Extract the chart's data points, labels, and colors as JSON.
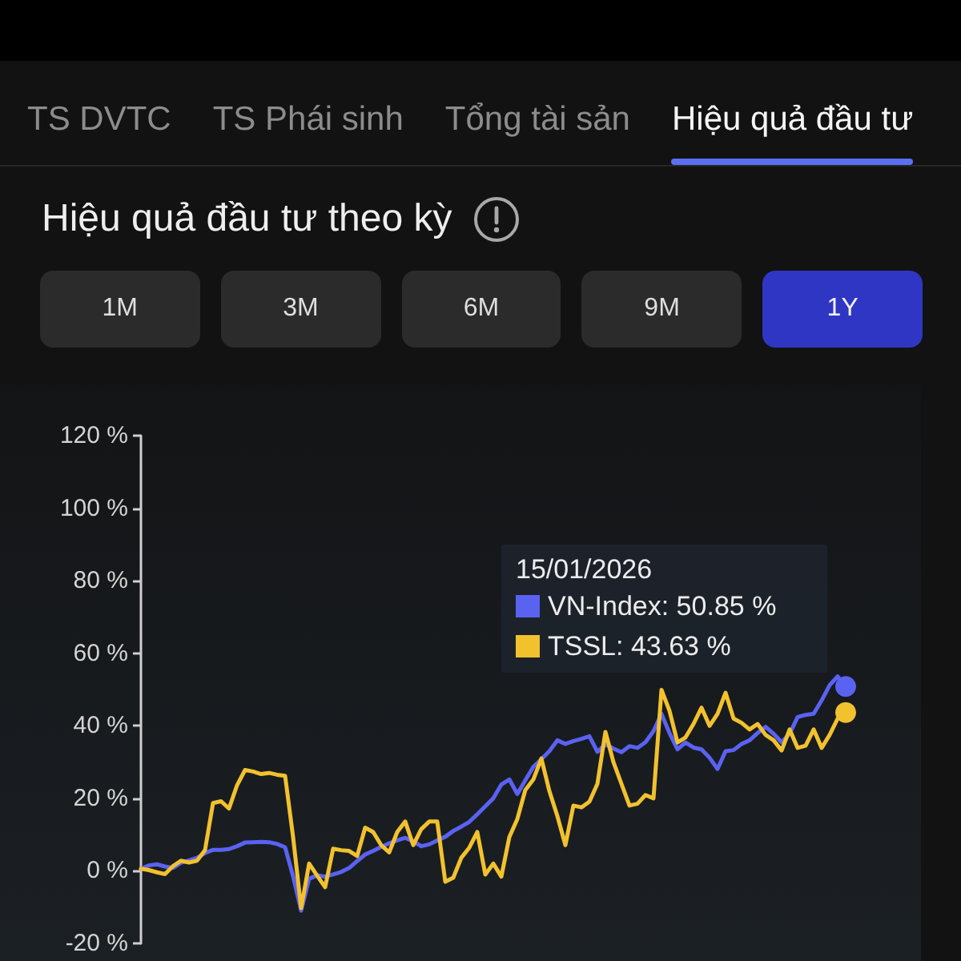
{
  "chart_data": {
    "type": "line",
    "title": "Hiệu quả đầu tư theo kỳ",
    "annotations": [
      "TS DVTC",
      "TS Phái sinh",
      "Tổng tài sản",
      "Hiệu quả đầu tư",
      "1M",
      "3M",
      "6M",
      "9M",
      "1Y"
    ],
    "legend_title": "15/01/2026",
    "legend": "top right",
    "tick_labels": "y",
    "line_style": "solid",
    "categories": [
      null,
      null,
      null,
      null,
      null,
      null,
      null,
      null,
      null,
      null,
      null,
      null,
      null,
      null,
      null,
      null,
      null,
      null,
      null,
      null,
      null,
      null,
      null,
      null,
      null,
      null,
      null,
      null,
      null,
      null,
      null,
      null,
      null,
      null,
      null,
      null,
      null,
      null,
      null,
      null,
      null,
      null,
      null,
      null,
      null,
      null,
      null,
      null,
      null,
      null,
      null,
      null,
      null,
      null,
      null,
      null,
      null,
      null,
      null,
      null,
      null,
      null,
      null,
      null,
      null,
      null,
      null,
      null,
      null,
      null,
      null,
      null,
      null,
      null,
      null,
      null,
      null,
      null,
      null,
      null,
      null,
      null,
      null,
      null,
      null,
      null,
      null,
      null,
      null
    ],
    "series": [
      {
        "name": "VN-Index: 50.85 %",
        "color": "#5a62f2",
        "values": [
          0.6,
          1.5,
          1.8,
          1.2,
          0.8,
          2.2,
          2.9,
          3.6,
          4.9,
          5.8,
          5.8,
          6.0,
          6.8,
          7.8,
          7.9,
          8.0,
          7.9,
          7.4,
          6.5,
          -1.5,
          -11.0,
          -2.2,
          -1.2,
          -1.6,
          -1.0,
          -0.3,
          0.8,
          2.7,
          4.5,
          5.5,
          6.6,
          7.6,
          8.4,
          9.1,
          8.1,
          6.8,
          7.3,
          8.4,
          9.4,
          11.0,
          12.2,
          13.5,
          15.6,
          17.8,
          20.0,
          23.8,
          25.2,
          21.2,
          25.0,
          28.7,
          30.8,
          33.0,
          36.0,
          35.0,
          35.8,
          36.4,
          37.1,
          32.8,
          34.9,
          33.7,
          32.7,
          34.4,
          33.9,
          35.5,
          38.5,
          43.3,
          38.0,
          33.5,
          35.4,
          34.0,
          33.5,
          31.2,
          28.1,
          33.0,
          33.3,
          35.0,
          36.0,
          38.0,
          39.7,
          37.8,
          35.5,
          37.8,
          42.4,
          43.0,
          43.3,
          47.0,
          51.2,
          53.6,
          50.85
        ]
      },
      {
        "name": "TSSL: 43.63 %",
        "color": "#f2c12e",
        "values": [
          0.6,
          0.2,
          -0.4,
          -0.9,
          1.3,
          2.8,
          2.3,
          2.8,
          5.7,
          18.7,
          19.2,
          17.2,
          23.6,
          27.8,
          27.4,
          26.7,
          27.0,
          26.5,
          26.2,
          9.3,
          -10.3,
          2.0,
          -1.3,
          -4.5,
          6.1,
          5.7,
          5.5,
          4.1,
          11.9,
          10.7,
          7.1,
          5.1,
          10.7,
          13.6,
          7.1,
          11.5,
          13.6,
          13.6,
          -3.0,
          -1.9,
          3.6,
          6.4,
          10.7,
          -1.0,
          2.0,
          -1.6,
          9.3,
          14.3,
          22.3,
          25.2,
          31.0,
          22.0,
          15.1,
          7.1,
          18.0,
          17.5,
          19.1,
          24.0,
          38.3,
          30.0,
          24.0,
          18.0,
          18.5,
          20.9,
          20.0,
          49.9,
          44.1,
          35.4,
          36.8,
          40.5,
          45.0,
          40.0,
          43.3,
          49.1,
          42.0,
          40.8,
          39.0,
          40.5,
          37.5,
          36.0,
          33.2,
          39.0,
          33.9,
          34.5,
          39.0,
          33.9,
          37.5,
          42.0,
          43.63
        ]
      }
    ],
    "ylim": [
      -20,
      120
    ],
    "yticks": [
      {
        "value": -20,
        "label": "-20 %"
      },
      {
        "value": 0,
        "label": "0 %"
      },
      {
        "value": 20,
        "label": "20 %"
      },
      {
        "value": 40,
        "label": "40 %"
      },
      {
        "value": 60,
        "label": "60 %"
      },
      {
        "value": 80,
        "label": "80 %"
      },
      {
        "value": 100,
        "label": "100 %"
      },
      {
        "value": 120,
        "label": "120 %"
      }
    ]
  }
}
